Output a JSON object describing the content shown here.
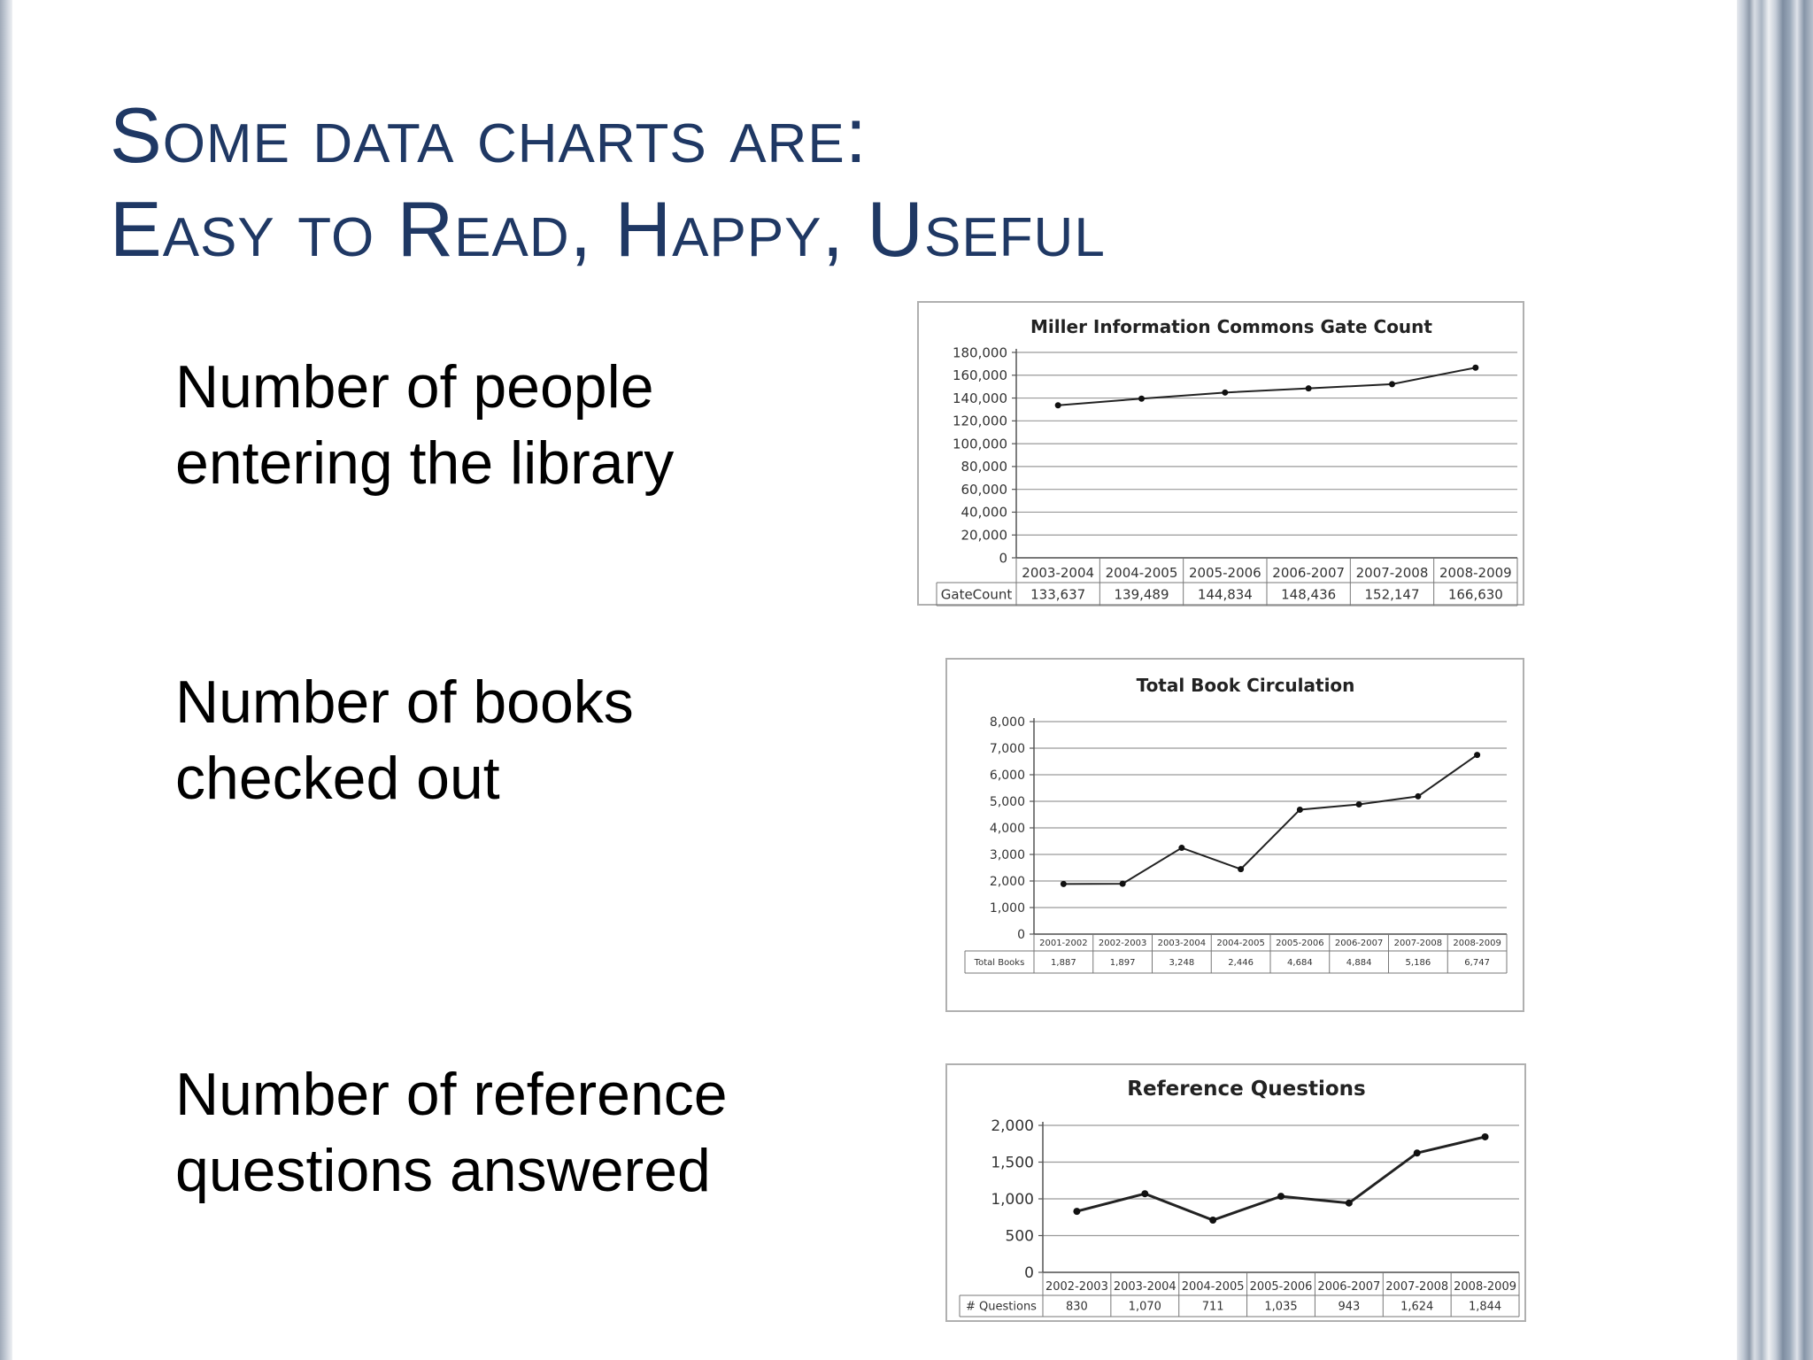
{
  "slide": {
    "title_line1": "Some data charts are:",
    "title_line2": "Easy to Read, Happy, Useful",
    "labels": {
      "gate": [
        "Number of people",
        "entering the library"
      ],
      "books": [
        "Number of books",
        "checked out"
      ],
      "reference": [
        "Number of reference",
        "questions answered"
      ]
    }
  },
  "chart_data": [
    {
      "type": "line",
      "title": "Miller Information Commons Gate Count",
      "categories": [
        "2003-2004",
        "2004-2005",
        "2005-2006",
        "2006-2007",
        "2007-2008",
        "2008-2009"
      ],
      "series": [
        {
          "name": "GateCount",
          "values": [
            133637,
            139489,
            144834,
            148436,
            152147,
            166630
          ],
          "labels": [
            "133,637",
            "139,489",
            "144,834",
            "148,436",
            "152,147",
            "166,630"
          ]
        }
      ],
      "yticks": [
        "180,000",
        "160,000",
        "140,000",
        "120,000",
        "100,000",
        "80,000",
        "60,000",
        "40,000",
        "20,000",
        "0"
      ],
      "ylim": [
        0,
        180000
      ],
      "grid": true,
      "data_table": true
    },
    {
      "type": "line",
      "title": "Total Book Circulation",
      "categories": [
        "2001-2002",
        "2002-2003",
        "2003-2004",
        "2004-2005",
        "2005-2006",
        "2006-2007",
        "2007-2008",
        "2008-2009"
      ],
      "series": [
        {
          "name": "Total Books",
          "values": [
            1887,
            1897,
            3248,
            2446,
            4684,
            4884,
            5186,
            6747
          ],
          "labels": [
            "1,887",
            "1,897",
            "3,248",
            "2,446",
            "4,684",
            "4,884",
            "5,186",
            "6,747"
          ]
        }
      ],
      "yticks": [
        "8,000",
        "7,000",
        "6,000",
        "5,000",
        "4,000",
        "3,000",
        "2,000",
        "1,000",
        "0"
      ],
      "ylim": [
        0,
        8000
      ],
      "grid": true,
      "data_table": true
    },
    {
      "type": "line",
      "title": "Reference Questions",
      "categories": [
        "2002-2003",
        "2003-2004",
        "2004-2005",
        "2005-2006",
        "2006-2007",
        "2007-2008",
        "2008-2009"
      ],
      "series": [
        {
          "name": "# Questions",
          "values": [
            830,
            1070,
            711,
            1035,
            943,
            1624,
            1844
          ],
          "labels": [
            "830",
            "1,070",
            "711",
            "1,035",
            "943",
            "1,624",
            "1,844"
          ]
        }
      ],
      "yticks": [
        "2,000",
        "1,500",
        "1,000",
        "500",
        "0"
      ],
      "ylim": [
        0,
        2000
      ],
      "grid": true,
      "data_table": true
    }
  ]
}
